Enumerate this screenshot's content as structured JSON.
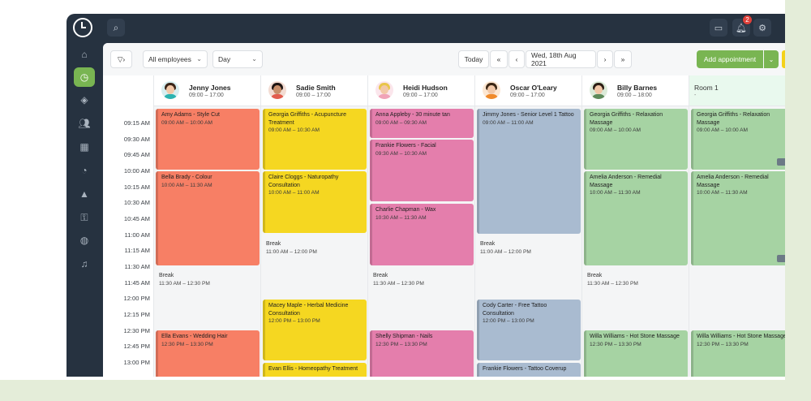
{
  "toolbar": {
    "filter_icon": "filter-icon",
    "employees_label": "All employees",
    "view_label": "Day",
    "today_label": "Today",
    "date_label": "Wed, 18th Aug 2021",
    "add_label": "Add appointment"
  },
  "notifications": {
    "count": "2"
  },
  "times": [
    "09:15 AM",
    "09:30 AM",
    "09:45 AM",
    "10:00 AM",
    "10:15 AM",
    "10:30 AM",
    "10:45 AM",
    "11:00 AM",
    "11:15 AM",
    "11:30 AM",
    "11:45 AM",
    "12:00 PM",
    "12:15 PM",
    "12:30 PM",
    "12:45 PM",
    "13:00 PM"
  ],
  "employees": [
    {
      "name": "Jenny Jones",
      "hours": "09:00 – 17:00",
      "hair": "#3a2418",
      "shirt": "#2bb3b0"
    },
    {
      "name": "Sadie Smith",
      "hours": "09:00 – 17:00",
      "hair": "#1e1412",
      "shirt": "#e25c4e"
    },
    {
      "name": "Heidi Hudson",
      "hours": "09:00 – 17:00",
      "hair": "#e8c54a",
      "shirt": "#f0a3b8"
    },
    {
      "name": "Oscar O'Leary",
      "hours": "09:00 – 17:00",
      "hair": "#3b2614",
      "shirt": "#f08a2b"
    },
    {
      "name": "Billy Barnes",
      "hours": "09:00 – 18:00",
      "hair": "#2b1d14",
      "shirt": "#5e8a5a"
    }
  ],
  "room": {
    "name": "Room 1",
    "sub": "-"
  },
  "appointments": {
    "c0": [
      {
        "title": "Amy Adams - Style Cut",
        "hours": "09:00 AM – 10:00 AM"
      },
      {
        "title": "Bella Brady - Colour",
        "hours": "10:00 AM – 11:30 AM"
      },
      {
        "title": "Break",
        "hours": "11:30 AM – 12:30 PM"
      },
      {
        "title": "Ella Evans - Wedding Hair",
        "hours": "12:30 PM – 13:30 PM"
      }
    ],
    "c1": [
      {
        "title": "Georgia Griffiths - Acupuncture Treatment",
        "hours": "09:00 AM – 10:30 AM"
      },
      {
        "title": "Claire Cloggs - Naturopathy Consultation",
        "hours": "10:00 AM – 11:00 AM"
      },
      {
        "title": "Break",
        "hours": "11:00 AM – 12:00 PM"
      },
      {
        "title": "Macey Maple - Herbal Medicine Consultation",
        "hours": "12:00 PM – 13:00 PM"
      },
      {
        "title": "Evan Ellis - Homeopathy Treatment",
        "hours": ""
      }
    ],
    "c2": [
      {
        "title": "Anna Appleby - 30 minute tan",
        "hours": "09:00 AM – 09:30 AM"
      },
      {
        "title": "Frankie Flowers - Facial",
        "hours": "09:30 AM – 10:30 AM"
      },
      {
        "title": "Charlie Chapman - Wax",
        "hours": "10:30 AM – 11:30 AM"
      },
      {
        "title": "Break",
        "hours": "11:30 AM – 12:30 PM"
      },
      {
        "title": "Shelly Shipman - Nails",
        "hours": "12:30 PM – 13:30 PM"
      }
    ],
    "c3": [
      {
        "title": "Jimmy Jones - Senior Level 1 Tattoo",
        "hours": "09:00 AM – 11:00 AM"
      },
      {
        "title": "Break",
        "hours": "11:00 AM – 12:00 PM"
      },
      {
        "title": "Cody Carter - Free Tattoo Consultation",
        "hours": "12:00 PM – 13:00 PM"
      },
      {
        "title": "Frankie Flowers - Tattoo Coverup",
        "hours": ""
      }
    ],
    "c4": [
      {
        "title": "Georgia Griffiths - Relaxation Massage",
        "hours": "09:00 AM – 10:00 AM"
      },
      {
        "title": "Amelia Anderson - Remedial Massage",
        "hours": "10:00 AM – 11:30 AM"
      },
      {
        "title": "Break",
        "hours": "11:30 AM – 12:30 PM"
      },
      {
        "title": "Willa Williams - Hot Stone Massage",
        "hours": "12:30 PM – 13:30 PM"
      }
    ],
    "c5": [
      {
        "title": "Georgia Griffiths - Relaxation Massage",
        "hours": "09:00 AM – 10:00 AM"
      },
      {
        "title": "Amelia Anderson - Remedial Massage",
        "hours": "10:00 AM – 11:30 AM"
      },
      {
        "title": "Willa Williams - Hot Stone Massage",
        "hours": "12:30 PM – 13:30 PM"
      }
    ]
  }
}
